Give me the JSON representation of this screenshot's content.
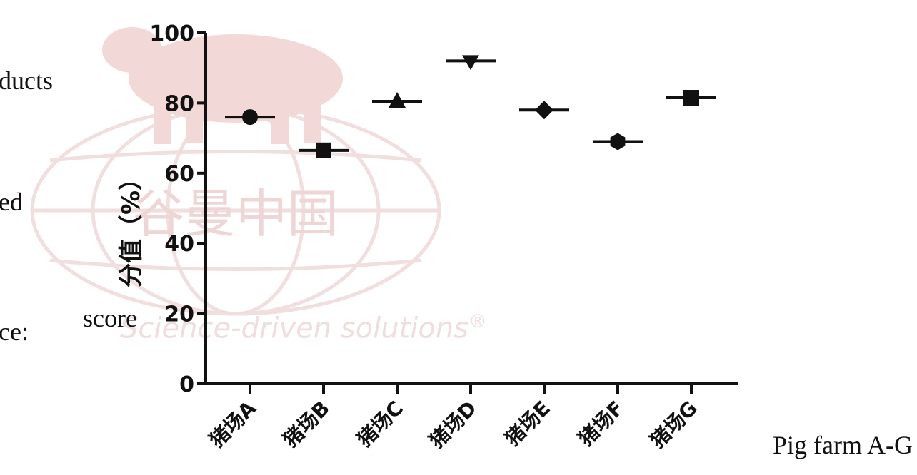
{
  "side_fragments": {
    "line1": "ducts",
    "line2": "ed",
    "line3": "ce:"
  },
  "watermark": {
    "tagline": "Science-driven solutions",
    "registered": "®",
    "brand": "谷曼中国",
    "colors": {
      "pig": "#f3d8d8",
      "globe": "#f1dede",
      "text": "#f0dede"
    }
  },
  "chart_data": {
    "type": "scatter",
    "ylabel": "分值（%）",
    "ylabel_en": "score",
    "xlabel_en": "Pig farm A-G",
    "categories": [
      "猪场A",
      "猪场B",
      "猪场C",
      "猪场D",
      "猪场E",
      "猪场F",
      "猪场G"
    ],
    "values": [
      76,
      66.5,
      80.5,
      92,
      78,
      69,
      81.5
    ],
    "markers": [
      "circle",
      "square",
      "triangle-up",
      "triangle-down",
      "diamond",
      "hexagon",
      "square"
    ],
    "yticks": [
      0,
      20,
      40,
      60,
      80,
      100
    ],
    "ylim": [
      0,
      100
    ],
    "grid": false,
    "color": "#111111"
  }
}
